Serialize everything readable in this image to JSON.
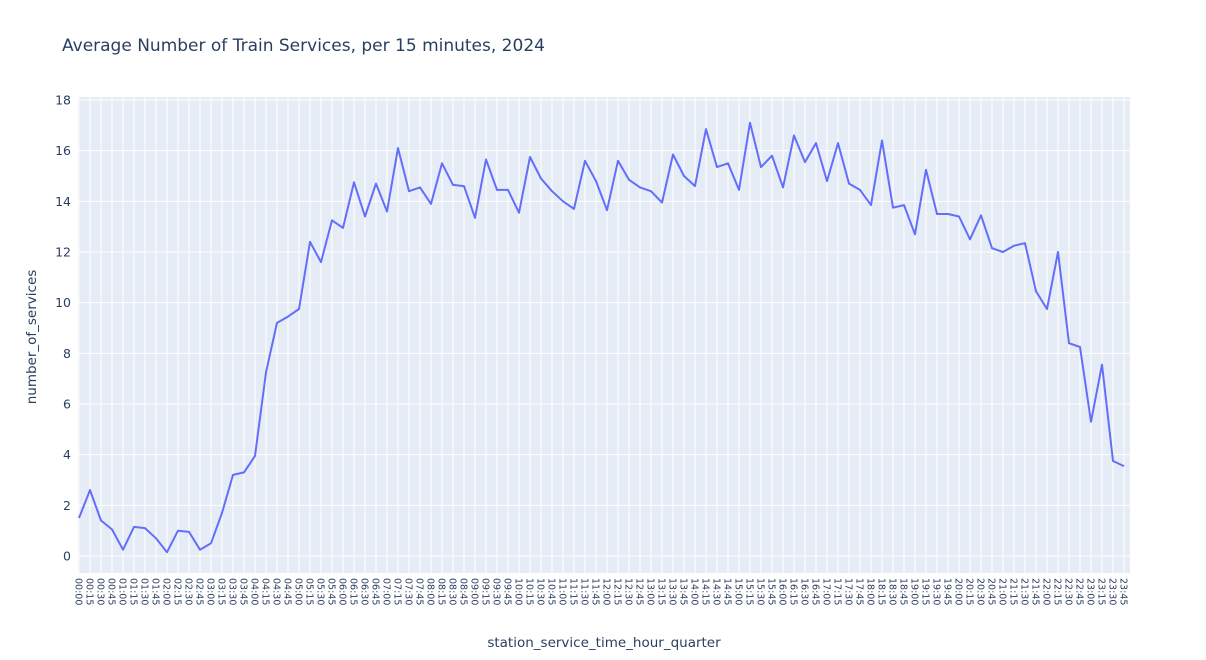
{
  "page": {
    "background": "#FFFFFF"
  },
  "chart_data": {
    "type": "line",
    "title": "Average Number of Train Services, per 15 minutes, 2024",
    "xlabel": "station_service_time_hour_quarter",
    "ylabel": "number_of_services",
    "legend": "none",
    "grid": true,
    "plot_bg": "#E5ECF6",
    "grid_color": "#FFFFFF",
    "line_color": "#636EFA",
    "text_color": "#2A3F5F",
    "x_tick_angle": 90,
    "yticks": [
      0,
      2,
      4,
      6,
      8,
      10,
      12,
      14,
      16,
      18
    ],
    "ylim": [
      -0.7,
      18.8
    ],
    "categories": [
      "00:00",
      "00:15",
      "00:30",
      "00:45",
      "01:00",
      "01:15",
      "01:30",
      "01:45",
      "02:00",
      "02:15",
      "02:30",
      "02:45",
      "03:00",
      "03:15",
      "03:30",
      "03:45",
      "04:00",
      "04:15",
      "04:30",
      "04:45",
      "05:00",
      "05:15",
      "05:30",
      "05:45",
      "06:00",
      "06:15",
      "06:30",
      "06:45",
      "07:00",
      "07:15",
      "07:30",
      "07:45",
      "08:00",
      "08:15",
      "08:30",
      "08:45",
      "09:00",
      "09:15",
      "09:30",
      "09:45",
      "10:00",
      "10:15",
      "10:30",
      "10:45",
      "11:00",
      "11:15",
      "11:30",
      "11:45",
      "12:00",
      "12:15",
      "12:30",
      "12:45",
      "13:00",
      "13:15",
      "13:30",
      "13:45",
      "14:00",
      "14:15",
      "14:30",
      "14:45",
      "15:00",
      "15:15",
      "15:30",
      "15:45",
      "16:00",
      "16:15",
      "16:30",
      "16:45",
      "17:00",
      "17:15",
      "17:30",
      "17:45",
      "18:00",
      "18:15",
      "18:30",
      "18:45",
      "19:00",
      "19:15",
      "19:30",
      "19:45",
      "20:00",
      "20:15",
      "20:30",
      "20:45",
      "21:00",
      "21:15",
      "21:30",
      "21:45",
      "22:00",
      "22:15",
      "22:30",
      "22:45",
      "23:00",
      "23:15",
      "23:30",
      "23:45"
    ],
    "series": [
      {
        "name": "number_of_services",
        "color": "#636EFA",
        "values": [
          1.5,
          2.6,
          1.4,
          1.05,
          0.25,
          1.15,
          1.1,
          0.7,
          0.15,
          1.0,
          0.95,
          0.25,
          0.5,
          1.7,
          3.2,
          3.3,
          3.95,
          7.25,
          9.2,
          9.45,
          9.75,
          12.4,
          11.6,
          13.25,
          12.95,
          14.75,
          13.4,
          14.7,
          13.6,
          16.1,
          14.4,
          14.55,
          13.9,
          15.5,
          14.65,
          14.6,
          13.35,
          15.65,
          14.45,
          14.45,
          13.55,
          15.75,
          14.9,
          14.4,
          14.0,
          13.7,
          15.6,
          14.8,
          13.65,
          15.6,
          14.85,
          14.55,
          14.4,
          13.95,
          15.85,
          15.0,
          14.6,
          16.85,
          15.35,
          15.5,
          14.45,
          17.1,
          15.35,
          15.8,
          14.55,
          16.6,
          15.55,
          16.3,
          14.8,
          16.3,
          14.7,
          14.45,
          13.85,
          16.4,
          13.75,
          13.85,
          12.7,
          15.25,
          13.5,
          13.5,
          13.4,
          12.5,
          13.45,
          12.15,
          12.0,
          12.25,
          12.35,
          10.45,
          9.75,
          12.0,
          8.4,
          8.25,
          5.3,
          7.55,
          3.75,
          3.55
        ]
      }
    ]
  }
}
